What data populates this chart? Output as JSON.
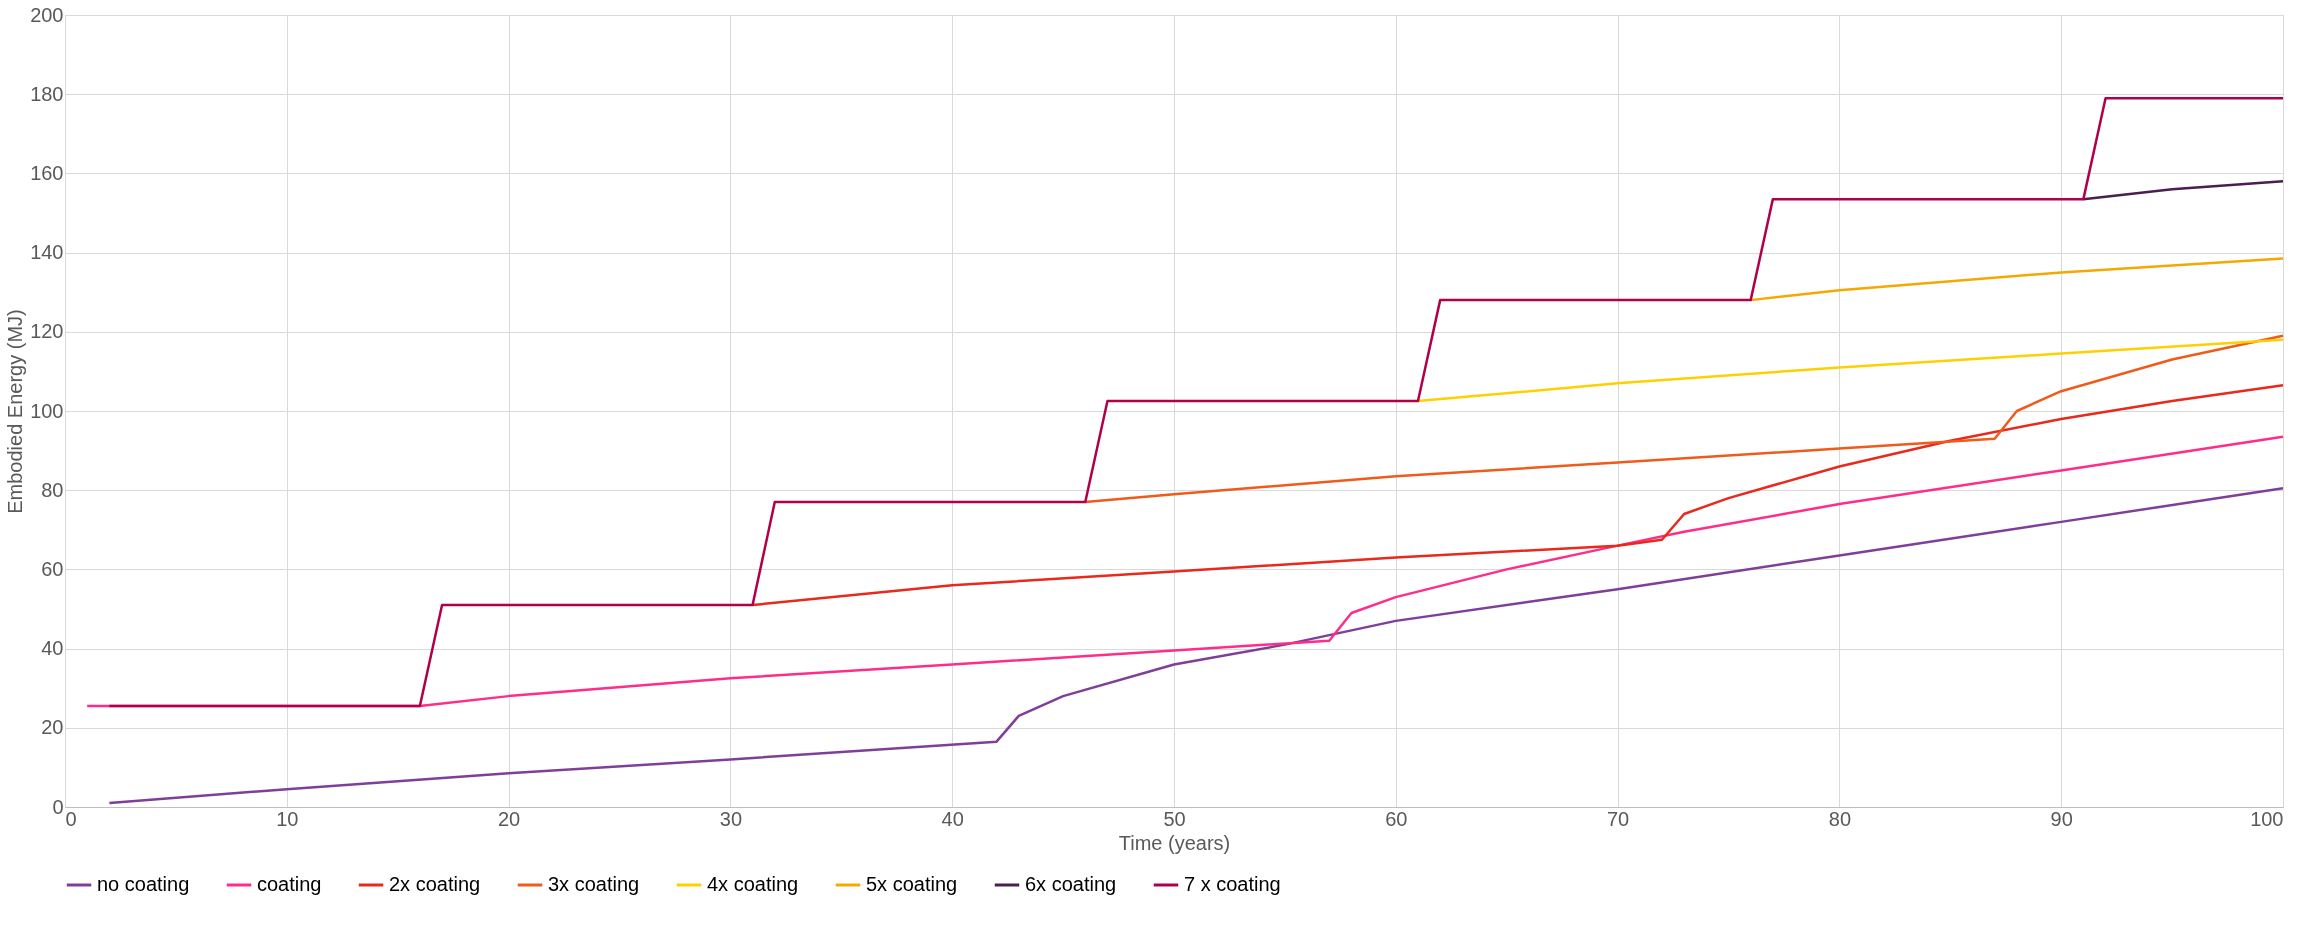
{
  "chart_data": {
    "type": "line",
    "xlabel": "Time (years)",
    "ylabel": "Embodied Energy (MJ)",
    "xlim": [
      0,
      100
    ],
    "xticks": [
      0,
      10,
      20,
      30,
      40,
      50,
      60,
      70,
      80,
      90,
      100
    ],
    "ylim": [
      0,
      200
    ],
    "yticks": [
      0,
      20,
      40,
      60,
      80,
      100,
      120,
      140,
      160,
      180,
      200
    ],
    "grid": true,
    "legend": "bottom",
    "line_style": "solid",
    "marker": "none",
    "series": [
      {
        "name": "no coating",
        "color": "#7f3f98",
        "x": [
          2,
          10,
          20,
          30,
          42,
          43,
          45,
          50,
          55,
          60,
          70,
          80,
          90,
          100
        ],
        "values": [
          1,
          4.5,
          8.5,
          12,
          16.5,
          23,
          28,
          36,
          41,
          47,
          55,
          63.5,
          72,
          80.5
        ]
      },
      {
        "name": "coating",
        "color": "#ff2d8a",
        "x": [
          1,
          16,
          20,
          30,
          40,
          50,
          57,
          58,
          60,
          65,
          70,
          73,
          80,
          90,
          100
        ],
        "values": [
          25.5,
          25.5,
          28,
          32.5,
          36,
          39.5,
          42,
          49,
          53,
          60,
          66,
          69.5,
          76.5,
          85,
          93.5
        ]
      },
      {
        "name": "2x coating",
        "color": "#e8291c",
        "x": [
          31,
          40,
          50,
          60,
          70,
          72,
          73,
          75,
          80,
          85,
          90,
          95,
          100
        ],
        "values": [
          51,
          56,
          59.5,
          63,
          66,
          67.5,
          74,
          78,
          86,
          92.5,
          98,
          102.5,
          106.5
        ]
      },
      {
        "name": "3x coating",
        "color": "#f05a1a",
        "x": [
          46,
          50,
          60,
          70,
          80,
          87,
          88,
          90,
          95,
          100
        ],
        "values": [
          77,
          79,
          83.5,
          87,
          90.5,
          93,
          100,
          105,
          113,
          119
        ]
      },
      {
        "name": "4x coating",
        "color": "#ffd000",
        "x": [
          61,
          70,
          80,
          90,
          100
        ],
        "values": [
          102.5,
          107,
          111,
          114.5,
          118
        ]
      },
      {
        "name": "5x coating",
        "color": "#f5a800",
        "x": [
          76,
          80,
          90,
          100
        ],
        "values": [
          128,
          130.5,
          135,
          138.5
        ]
      },
      {
        "name": "6x coating",
        "color": "#4b1d50",
        "x": [
          91,
          95,
          100
        ],
        "values": [
          153.5,
          156,
          158
        ]
      },
      {
        "name": "7 x coating",
        "color": "#b0004a",
        "x": [
          2,
          16,
          17,
          31,
          32,
          46,
          47,
          61,
          62,
          76,
          77,
          91,
          92,
          100
        ],
        "values": [
          25.5,
          25.5,
          51,
          51,
          77,
          77,
          102.5,
          102.5,
          128,
          128,
          153.5,
          153.5,
          179,
          179
        ]
      }
    ]
  }
}
